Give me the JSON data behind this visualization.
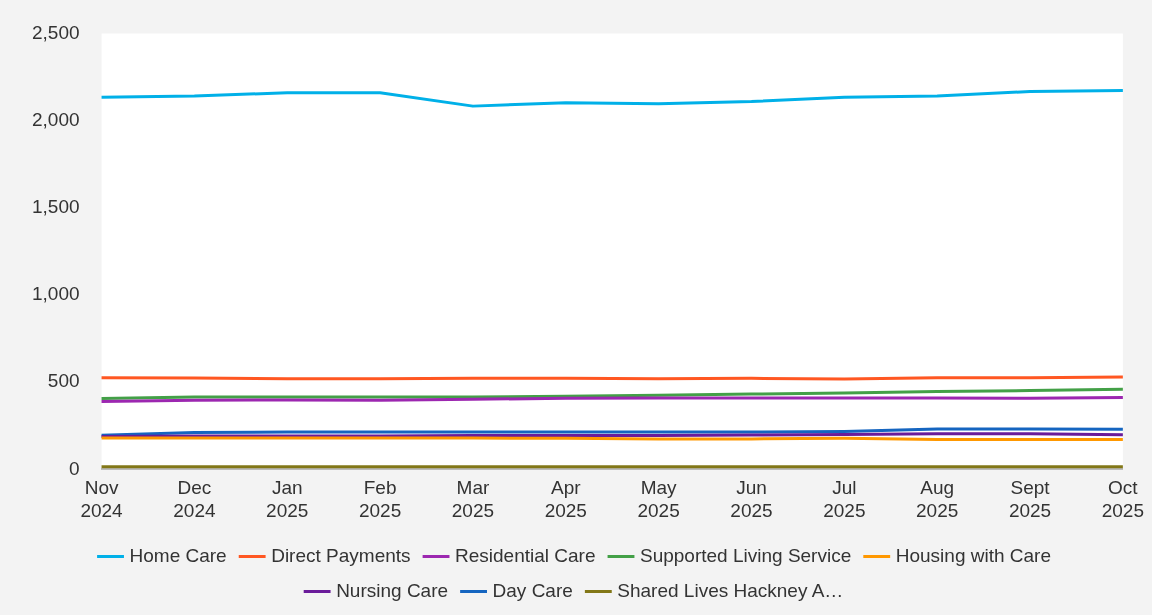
{
  "chart_data": {
    "type": "line",
    "categories": [
      "Nov 2024",
      "Dec 2024",
      "Jan 2025",
      "Feb 2025",
      "Mar 2025",
      "Apr 2025",
      "May 2025",
      "Jun 2025",
      "Jul 2025",
      "Aug 2025",
      "Sept 2025",
      "Oct 2025"
    ],
    "series": [
      {
        "name": "Home Care",
        "color": "#00b0e8",
        "values": [
          2134,
          2141,
          2160,
          2160,
          2083,
          2102,
          2096,
          2109,
          2134,
          2141,
          2167,
          2173
        ]
      },
      {
        "name": "Direct Payments",
        "color": "#ff5722",
        "values": [
          526,
          524,
          520,
          520,
          522,
          523,
          520,
          522,
          518,
          525,
          525,
          530
        ]
      },
      {
        "name": "Residential Care",
        "color": "#9c27b0",
        "values": [
          390,
          396,
          398,
          396,
          402,
          408,
          410,
          410,
          410,
          410,
          408,
          412
        ]
      },
      {
        "name": "Supported Living Service",
        "color": "#43a047",
        "values": [
          407,
          415,
          415,
          415,
          415,
          420,
          425,
          432,
          438,
          446,
          452,
          460
        ]
      },
      {
        "name": "Housing with Care",
        "color": "#ff9800",
        "values": [
          180,
          180,
          180,
          180,
          180,
          178,
          175,
          175,
          178,
          172,
          172,
          172
        ]
      },
      {
        "name": "Nursing Care",
        "color": "#6a1b9a",
        "values": [
          188,
          192,
          192,
          192,
          195,
          195,
          195,
          197,
          200,
          205,
          205,
          198
        ]
      },
      {
        "name": "Day Care",
        "color": "#1565c0",
        "values": [
          196,
          212,
          214,
          214,
          214,
          214,
          214,
          214,
          218,
          232,
          232,
          230
        ]
      },
      {
        "name": "Shared Lives Hackney A…",
        "color": "#827717",
        "values": [
          15,
          15,
          15,
          15,
          15,
          15,
          15,
          15,
          15,
          15,
          15,
          15
        ]
      }
    ],
    "ylim": [
      0,
      2500
    ],
    "yticks": [
      0,
      500,
      {
        "value": 1000,
        "label": "1,000"
      },
      {
        "value": 1500,
        "label": "1,500"
      },
      {
        "value": 2000,
        "label": "2,000"
      },
      {
        "value": 2500,
        "label": "2,500"
      }
    ],
    "grid": false,
    "legend": "bottom",
    "marker": "none",
    "line_style": "solid"
  }
}
